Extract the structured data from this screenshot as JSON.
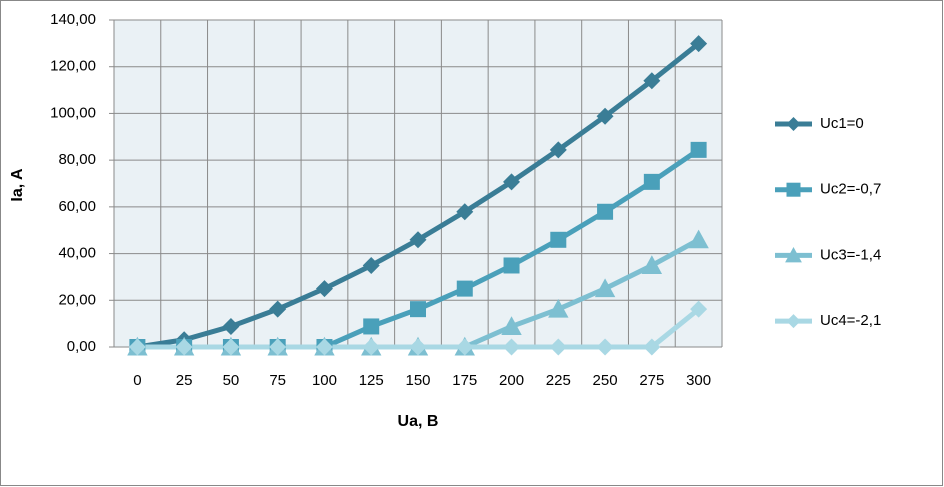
{
  "chart_data": {
    "type": "line",
    "x_label": "Ua, B",
    "y_label": "Ia, A",
    "categories": [
      "0",
      "25",
      "50",
      "75",
      "100",
      "125",
      "150",
      "175",
      "200",
      "225",
      "250",
      "275",
      "300"
    ],
    "series": [
      {
        "name": "Uc1=0",
        "color": "#3a7d96",
        "marker": "diamond",
        "values": [
          0,
          3.1,
          8.8,
          16.2,
          25,
          34.9,
          45.9,
          57.9,
          70.7,
          84.4,
          98.8,
          114,
          129.9
        ]
      },
      {
        "name": "Uc2=-0,7",
        "color": "#4aa0ba",
        "marker": "square",
        "values": [
          0,
          0,
          0,
          0,
          0,
          8.8,
          16.2,
          25,
          34.9,
          45.9,
          57.9,
          70.7,
          84.4
        ]
      },
      {
        "name": "Uc3=-1,4",
        "color": "#7dbfd1",
        "marker": "triangle",
        "values": [
          0,
          0,
          0,
          0,
          0,
          0,
          0,
          0,
          8.8,
          16.2,
          25,
          34.9,
          45.9
        ]
      },
      {
        "name": "Uc4=-2,1",
        "color": "#a9d8e4",
        "marker": "diamond",
        "values": [
          0,
          0,
          0,
          0,
          0,
          0,
          0,
          0,
          0,
          0,
          0,
          0,
          16.2
        ]
      }
    ],
    "ylim": [
      0,
      140
    ],
    "yticks": [
      {
        "value": 0,
        "label": "0,00"
      },
      {
        "value": 20,
        "label": "20,00"
      },
      {
        "value": 40,
        "label": "40,00"
      },
      {
        "value": 60,
        "label": "60,00"
      },
      {
        "value": 80,
        "label": "80,00"
      },
      {
        "value": 100,
        "label": "100,00"
      },
      {
        "value": 120,
        "label": "120,00"
      },
      {
        "value": 140,
        "label": "140,00"
      }
    ],
    "grid": true,
    "legend": "right"
  }
}
